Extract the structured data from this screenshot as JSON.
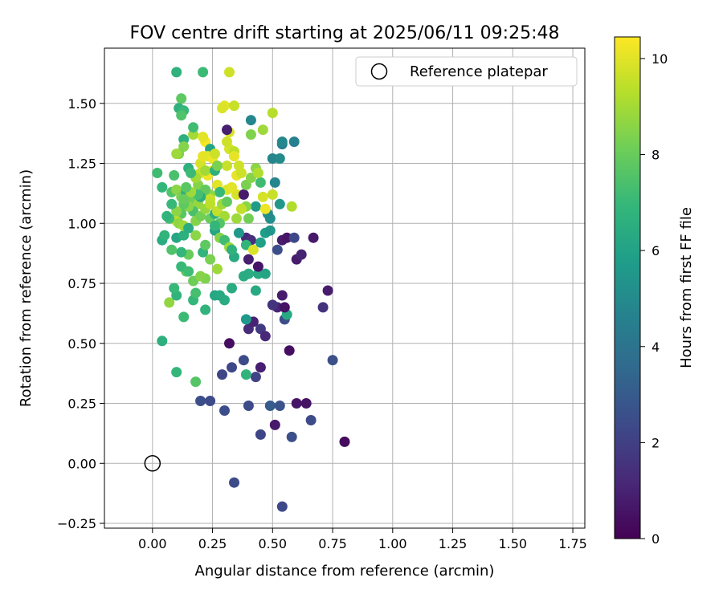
{
  "chart_data": {
    "type": "scatter",
    "title": "FOV centre drift starting at 2025/06/11 09:25:48",
    "xlabel": "Angular distance from reference (arcmin)",
    "ylabel": "Rotation from reference (arcmin)",
    "xlim": [
      -0.2,
      1.8
    ],
    "ylim": [
      -0.27,
      1.73
    ],
    "x_ticks": [
      "0.00",
      "0.25",
      "0.50",
      "0.75",
      "1.00",
      "1.25",
      "1.50",
      "1.75"
    ],
    "y_ticks": [
      "−0.25",
      "0.00",
      "0.25",
      "0.50",
      "0.75",
      "1.00",
      "1.25",
      "1.50"
    ],
    "grid": true,
    "legend": {
      "placement": "top-right",
      "entries": [
        "Reference platepar"
      ]
    },
    "reference_point": {
      "label": "Reference platepar",
      "x": 0.0,
      "y": 0.0,
      "marker": "open-circle"
    },
    "colorbar": {
      "label": "Hours from first FF file",
      "colormap": "viridis",
      "range": [
        0,
        10.45
      ],
      "ticks": [
        "0",
        "2",
        "4",
        "6",
        "8",
        "10"
      ],
      "stops": [
        "#440154",
        "#482878",
        "#3e4989",
        "#31688e",
        "#26828e",
        "#1f9e89",
        "#35b779",
        "#6ece58",
        "#b5de2b",
        "#fde725"
      ]
    },
    "points": [
      [
        0.54,
        -0.18,
        2.3
      ],
      [
        0.34,
        -0.08,
        2.4
      ],
      [
        0.8,
        0.09,
        0.3
      ],
      [
        0.58,
        0.11,
        2.6
      ],
      [
        0.45,
        0.12,
        2.2
      ],
      [
        0.51,
        0.16,
        0.7
      ],
      [
        0.3,
        0.22,
        2.5
      ],
      [
        0.4,
        0.24,
        2.4
      ],
      [
        0.49,
        0.24,
        3.0
      ],
      [
        0.53,
        0.24,
        2.7
      ],
      [
        0.6,
        0.25,
        0.6
      ],
      [
        0.64,
        0.25,
        0.5
      ],
      [
        0.66,
        0.18,
        2.4
      ],
      [
        0.24,
        0.26,
        2.4
      ],
      [
        0.2,
        0.26,
        2.5
      ],
      [
        0.18,
        0.34,
        7.6
      ],
      [
        0.1,
        0.38,
        6.9
      ],
      [
        0.29,
        0.37,
        2.2
      ],
      [
        0.33,
        0.4,
        2.3
      ],
      [
        0.38,
        0.43,
        2.4
      ],
      [
        0.43,
        0.36,
        2.1
      ],
      [
        0.45,
        0.4,
        0.9
      ],
      [
        0.32,
        0.5,
        0.4
      ],
      [
        0.75,
        0.43,
        2.6
      ],
      [
        0.57,
        0.47,
        0.4
      ],
      [
        0.04,
        0.51,
        6.6
      ],
      [
        0.39,
        0.37,
        6.8
      ],
      [
        0.4,
        0.56,
        1.3
      ],
      [
        0.42,
        0.59,
        1.0
      ],
      [
        0.45,
        0.56,
        1.8
      ],
      [
        0.47,
        0.53,
        1.2
      ],
      [
        0.39,
        0.6,
        5.6
      ],
      [
        0.13,
        0.61,
        7.1
      ],
      [
        0.55,
        0.6,
        2.5
      ],
      [
        0.56,
        0.62,
        6.3
      ],
      [
        0.52,
        0.65,
        1.1
      ],
      [
        0.55,
        0.65,
        0.5
      ],
      [
        0.5,
        0.66,
        1.6
      ],
      [
        0.71,
        0.65,
        1.5
      ],
      [
        0.73,
        0.72,
        0.8
      ],
      [
        0.54,
        0.7,
        0.8
      ],
      [
        0.07,
        0.67,
        8.7
      ],
      [
        0.1,
        0.7,
        6.8
      ],
      [
        0.09,
        0.73,
        7.0
      ],
      [
        0.17,
        0.68,
        6.9
      ],
      [
        0.22,
        0.64,
        6.8
      ],
      [
        0.3,
        0.68,
        6.4
      ],
      [
        0.26,
        0.7,
        6.2
      ],
      [
        0.28,
        0.7,
        6.3
      ],
      [
        0.33,
        0.73,
        6.4
      ],
      [
        0.18,
        0.71,
        7.3
      ],
      [
        0.4,
        0.79,
        6.5
      ],
      [
        0.43,
        0.72,
        6.3
      ],
      [
        0.44,
        0.79,
        6.3
      ],
      [
        0.47,
        0.79,
        6.1
      ],
      [
        0.38,
        0.78,
        6.4
      ],
      [
        0.44,
        0.82,
        0.6
      ],
      [
        0.6,
        0.85,
        0.8
      ],
      [
        0.62,
        0.87,
        1.0
      ],
      [
        0.52,
        0.89,
        2.5
      ],
      [
        0.54,
        0.93,
        0.8
      ],
      [
        0.56,
        0.94,
        0.6
      ],
      [
        0.59,
        0.94,
        2.3
      ],
      [
        0.67,
        0.94,
        0.7
      ],
      [
        0.4,
        0.85,
        0.9
      ],
      [
        0.39,
        0.94,
        1.2
      ],
      [
        0.41,
        0.93,
        1.4
      ],
      [
        0.39,
        0.91,
        6.8
      ],
      [
        0.42,
        0.89,
        9.9
      ],
      [
        0.34,
        0.86,
        6.3
      ],
      [
        0.27,
        0.81,
        8.9
      ],
      [
        0.22,
        0.77,
        8.4
      ],
      [
        0.17,
        0.76,
        8.1
      ],
      [
        0.14,
        0.8,
        7.9
      ],
      [
        0.12,
        0.82,
        7.0
      ],
      [
        0.15,
        0.8,
        7.2
      ],
      [
        0.2,
        0.78,
        8.5
      ],
      [
        0.24,
        0.85,
        8.3
      ],
      [
        0.21,
        0.88,
        6.8
      ],
      [
        0.15,
        0.87,
        8.0
      ],
      [
        0.12,
        0.88,
        6.9
      ],
      [
        0.08,
        0.89,
        7.5
      ],
      [
        0.04,
        0.93,
        6.4
      ],
      [
        0.05,
        0.95,
        6.8
      ],
      [
        0.1,
        0.94,
        6.2
      ],
      [
        0.13,
        0.95,
        6.6
      ],
      [
        0.18,
        0.95,
        8.6
      ],
      [
        0.22,
        0.91,
        7.8
      ],
      [
        0.26,
        0.97,
        6.1
      ],
      [
        0.28,
        0.94,
        8.5
      ],
      [
        0.3,
        0.93,
        7.2
      ],
      [
        0.32,
        0.9,
        8.9
      ],
      [
        0.33,
        0.89,
        6.7
      ],
      [
        0.36,
        0.96,
        5.6
      ],
      [
        0.45,
        0.92,
        5.9
      ],
      [
        0.47,
        0.96,
        5.8
      ],
      [
        0.49,
        0.97,
        5.5
      ],
      [
        0.49,
        1.02,
        5.2
      ],
      [
        0.48,
        1.04,
        5.0
      ],
      [
        0.43,
        1.07,
        5.7
      ],
      [
        0.4,
        1.02,
        8.2
      ],
      [
        0.39,
        1.07,
        8.6
      ],
      [
        0.35,
        1.02,
        8.9
      ],
      [
        0.37,
        1.06,
        9.5
      ],
      [
        0.35,
        1.12,
        9.8
      ],
      [
        0.38,
        1.12,
        0.8
      ],
      [
        0.39,
        1.16,
        8.3
      ],
      [
        0.41,
        1.19,
        8.5
      ],
      [
        0.43,
        1.23,
        8.6
      ],
      [
        0.45,
        1.17,
        7.2
      ],
      [
        0.44,
        1.21,
        9.2
      ],
      [
        0.46,
        1.11,
        9.8
      ],
      [
        0.47,
        1.06,
        10.2
      ],
      [
        0.5,
        1.12,
        9.6
      ],
      [
        0.51,
        1.17,
        4.8
      ],
      [
        0.53,
        1.08,
        5.5
      ],
      [
        0.58,
        1.07,
        9.2
      ],
      [
        0.5,
        1.27,
        4.8
      ],
      [
        0.53,
        1.27,
        5.0
      ],
      [
        0.54,
        1.33,
        4.5
      ],
      [
        0.54,
        1.34,
        4.9
      ],
      [
        0.59,
        1.34,
        4.6
      ],
      [
        0.46,
        1.39,
        8.9
      ],
      [
        0.41,
        1.37,
        8.4
      ],
      [
        0.41,
        1.43,
        4.8
      ],
      [
        0.5,
        1.46,
        9.3
      ],
      [
        0.32,
        1.38,
        9.9
      ],
      [
        0.31,
        1.39,
        0.9
      ],
      [
        0.32,
        1.31,
        9.8
      ],
      [
        0.34,
        1.3,
        9.4
      ],
      [
        0.31,
        1.24,
        9.6
      ],
      [
        0.31,
        1.14,
        9.9
      ],
      [
        0.33,
        1.15,
        10.0
      ],
      [
        0.35,
        1.2,
        10.1
      ],
      [
        0.37,
        1.21,
        9.7
      ],
      [
        0.3,
        1.49,
        10.0
      ],
      [
        0.34,
        1.49,
        9.6
      ],
      [
        0.32,
        1.63,
        9.7
      ],
      [
        0.21,
        1.63,
        7.1
      ],
      [
        0.1,
        1.63,
        6.7
      ],
      [
        0.12,
        1.52,
        7.8
      ],
      [
        0.11,
        1.48,
        6.7
      ],
      [
        0.13,
        1.47,
        7.0
      ],
      [
        0.12,
        1.45,
        7.5
      ],
      [
        0.17,
        1.37,
        9.0
      ],
      [
        0.17,
        1.4,
        7.2
      ],
      [
        0.13,
        1.35,
        6.6
      ],
      [
        0.13,
        1.32,
        8.5
      ],
      [
        0.11,
        1.29,
        8.4
      ],
      [
        0.1,
        1.29,
        8.9
      ],
      [
        0.09,
        1.2,
        7.4
      ],
      [
        0.02,
        1.21,
        7.2
      ],
      [
        0.04,
        1.15,
        6.9
      ],
      [
        0.08,
        1.13,
        7.5
      ],
      [
        0.1,
        1.14,
        8.6
      ],
      [
        0.12,
        1.11,
        8.3
      ],
      [
        0.14,
        1.13,
        6.6
      ],
      [
        0.15,
        1.1,
        7.3
      ],
      [
        0.17,
        1.1,
        8.1
      ],
      [
        0.19,
        1.16,
        8.5
      ],
      [
        0.2,
        1.21,
        9.5
      ],
      [
        0.2,
        1.25,
        9.8
      ],
      [
        0.21,
        1.28,
        10.1
      ],
      [
        0.22,
        1.34,
        10.3
      ],
      [
        0.21,
        1.36,
        10.0
      ],
      [
        0.24,
        1.31,
        6.1
      ],
      [
        0.23,
        1.28,
        10.0
      ],
      [
        0.25,
        1.27,
        10.2
      ],
      [
        0.26,
        1.29,
        9.7
      ],
      [
        0.25,
        1.22,
        10.3
      ],
      [
        0.23,
        1.2,
        10.2
      ],
      [
        0.22,
        1.22,
        9.0
      ],
      [
        0.26,
        1.22,
        6.6
      ],
      [
        0.27,
        1.24,
        8.3
      ],
      [
        0.27,
        1.16,
        10.0
      ],
      [
        0.28,
        1.13,
        7.0
      ],
      [
        0.24,
        1.12,
        8.7
      ],
      [
        0.22,
        1.14,
        7.9
      ],
      [
        0.19,
        1.08,
        8.8
      ],
      [
        0.17,
        1.05,
        7.4
      ],
      [
        0.15,
        1.07,
        8.6
      ],
      [
        0.13,
        1.08,
        7.8
      ],
      [
        0.12,
        1.04,
        7.7
      ],
      [
        0.1,
        1.05,
        8.6
      ],
      [
        0.1,
        1.01,
        9.3
      ],
      [
        0.07,
        1.02,
        7.2
      ],
      [
        0.06,
        1.03,
        6.8
      ],
      [
        0.08,
        1.08,
        7.0
      ],
      [
        0.11,
        1.0,
        8.7
      ],
      [
        0.13,
        0.99,
        8.9
      ],
      [
        0.15,
        0.98,
        6.4
      ],
      [
        0.18,
        1.01,
        8.5
      ],
      [
        0.2,
        1.03,
        8.2
      ],
      [
        0.22,
        1.06,
        8.8
      ],
      [
        0.24,
        1.02,
        8.0
      ],
      [
        0.26,
        1.04,
        6.6
      ],
      [
        0.27,
        1.05,
        9.5
      ],
      [
        0.29,
        1.08,
        8.9
      ],
      [
        0.31,
        1.09,
        7.9
      ],
      [
        0.3,
        1.03,
        9.0
      ],
      [
        0.28,
        1.0,
        7.6
      ],
      [
        0.26,
        0.99,
        6.9
      ],
      [
        0.24,
        1.1,
        9.6
      ],
      [
        0.24,
        1.08,
        9.4
      ],
      [
        0.2,
        1.11,
        6.5
      ],
      [
        0.19,
        1.12,
        7.3
      ],
      [
        0.16,
        1.13,
        8.9
      ],
      [
        0.14,
        1.15,
        7.7
      ],
      [
        0.15,
        1.23,
        6.6
      ],
      [
        0.18,
        1.19,
        9.0
      ],
      [
        0.29,
        1.48,
        9.9
      ],
      [
        0.31,
        1.34,
        9.7
      ],
      [
        0.34,
        1.28,
        10.1
      ],
      [
        0.36,
        1.24,
        9.7
      ],
      [
        0.13,
        1.1,
        8.0
      ],
      [
        0.16,
        1.21,
        7.1
      ]
    ]
  }
}
